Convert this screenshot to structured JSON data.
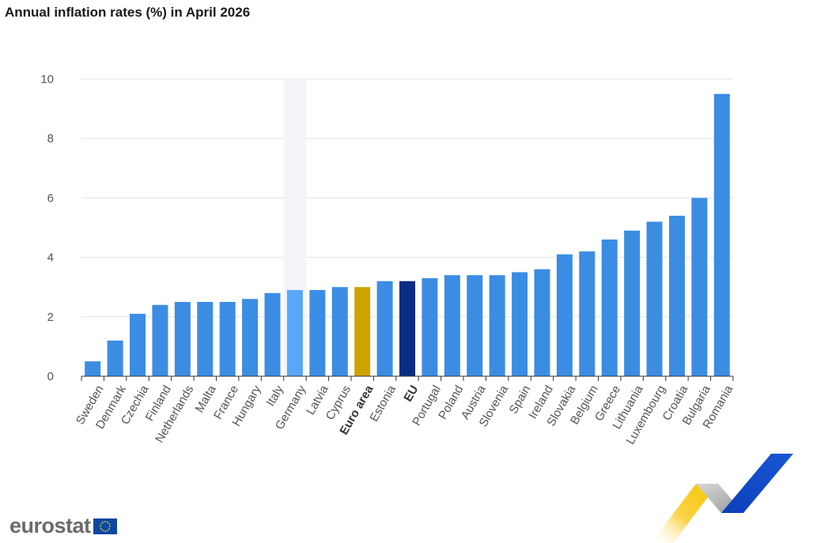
{
  "title": "Annual inflation rates (%) in April 2026",
  "logo": {
    "text": "eurostat",
    "flag_icon": "eu-flag-icon"
  },
  "colors": {
    "default_bar": "#3b8de3",
    "highlight_bar": "#5aa6f7",
    "euro_area_bar": "#cca300",
    "eu_bar": "#0c2d83",
    "grid": "#e3e3e3",
    "hover_band": "#f3f5fb"
  },
  "chart_data": {
    "type": "bar",
    "title": "Annual inflation rates (%) in April 2026",
    "xlabel": "",
    "ylabel": "",
    "ylim": [
      0,
      10
    ],
    "yticks": [
      0,
      2,
      4,
      6,
      8,
      10
    ],
    "grid": true,
    "highlighted_category": "Germany",
    "categories": [
      "Sweden",
      "Denmark",
      "Czechia",
      "Finland",
      "Netherlands",
      "Malta",
      "France",
      "Hungary",
      "Italy",
      "Germany",
      "Latvia",
      "Cyprus",
      "Euro area",
      "Estonia",
      "EU",
      "Portugal",
      "Poland",
      "Austria",
      "Slovenia",
      "Spain",
      "Ireland",
      "Slovakia",
      "Belgium",
      "Greece",
      "Lithuania",
      "Luxembourg",
      "Croatia",
      "Bulgaria",
      "Romania"
    ],
    "values": [
      0.5,
      1.2,
      2.1,
      2.4,
      2.5,
      2.5,
      2.5,
      2.6,
      2.8,
      2.9,
      2.9,
      3.0,
      3.0,
      3.2,
      3.2,
      3.3,
      3.4,
      3.4,
      3.4,
      3.5,
      3.6,
      4.1,
      4.2,
      4.6,
      4.9,
      5.2,
      5.4,
      6.0,
      9.5
    ],
    "bold_categories": [
      "Euro area",
      "EU"
    ]
  }
}
